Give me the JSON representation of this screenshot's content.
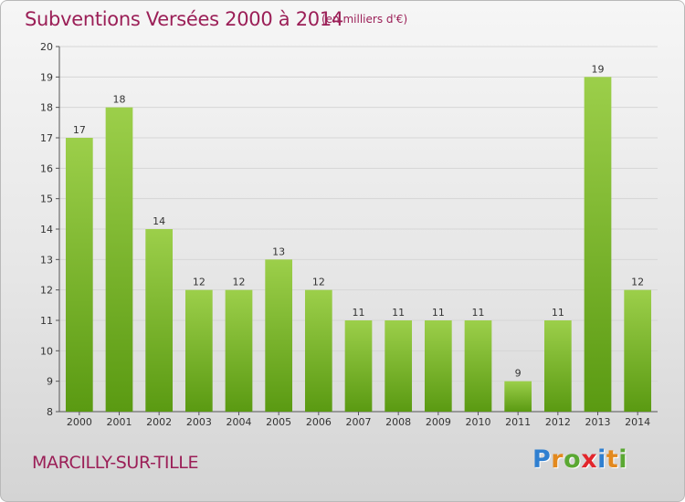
{
  "header": {
    "title": "Subventions Versées 2000 à 2014",
    "subtitle": "(en milliers d'€)"
  },
  "footer": {
    "commune": "MARCILLY-SUR-TILLE",
    "logo_text": "Proxiti"
  },
  "colors": {
    "title": "#9b1f57",
    "bar_top": "#9ccf4a",
    "bar_bottom": "#5a9a12",
    "grid": "#d6d6d6"
  },
  "chart_data": {
    "type": "bar",
    "title": "Subventions Versées 2000 à 2014",
    "subtitle": "(en milliers d'€)",
    "categories": [
      "2000",
      "2001",
      "2002",
      "2003",
      "2004",
      "2005",
      "2006",
      "2007",
      "2008",
      "2009",
      "2010",
      "2011",
      "2012",
      "2013",
      "2014"
    ],
    "values": [
      17,
      18,
      14,
      12,
      12,
      13,
      12,
      11,
      11,
      11,
      11,
      9,
      11,
      19,
      12
    ],
    "ylim": [
      8,
      20
    ],
    "yticks": [
      8,
      9,
      10,
      11,
      12,
      13,
      14,
      15,
      16,
      17,
      18,
      19,
      20
    ],
    "grid": true,
    "xlabel": "",
    "ylabel": ""
  }
}
